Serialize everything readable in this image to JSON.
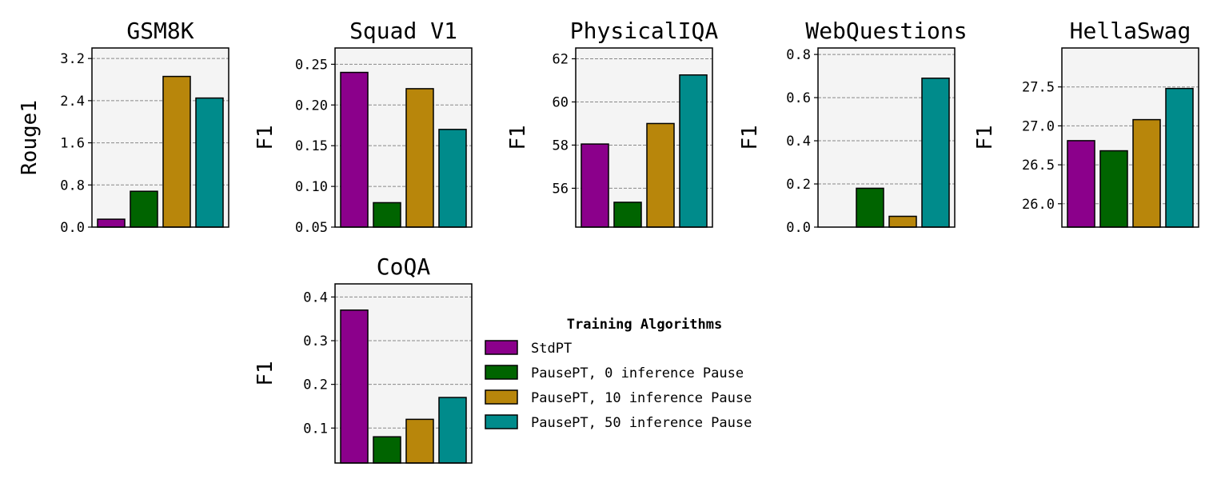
{
  "legend": {
    "title": "Training Algorithms",
    "entries": [
      "StdPT",
      "PausePT, 0 inference Pause",
      "PausePT, 10 inference Pause",
      "PausePT, 50 inference Pause"
    ]
  },
  "colors": [
    "#8b008b",
    "#006400",
    "#b8860b",
    "#008b8b"
  ],
  "chart_data": [
    {
      "type": "bar",
      "title": "GSM8K",
      "ylabel": "Rouge1",
      "categories": [
        "StdPT",
        "PausePT, 0 inference Pause",
        "PausePT, 10 inference Pause",
        "PausePT, 50 inference Pause"
      ],
      "values": [
        0.15,
        0.68,
        2.86,
        2.45
      ],
      "ylim": [
        0,
        3.4
      ],
      "yticks": [
        0,
        0.8,
        1.6,
        2.4,
        3.2
      ],
      "yticklabels": [
        "0.0",
        "0.8",
        "1.6",
        "2.4",
        "3.2"
      ],
      "grid": true
    },
    {
      "type": "bar",
      "title": "Squad V1",
      "ylabel": "F1",
      "categories": [
        "StdPT",
        "PausePT, 0 inference Pause",
        "PausePT, 10 inference Pause",
        "PausePT, 50 inference Pause"
      ],
      "values": [
        0.24,
        0.08,
        0.22,
        0.17
      ],
      "ylim": [
        0.05,
        0.27
      ],
      "yticks": [
        0.05,
        0.1,
        0.15,
        0.2,
        0.25
      ],
      "yticklabels": [
        "0.05",
        "0.10",
        "0.15",
        "0.20",
        "0.25"
      ],
      "grid": true
    },
    {
      "type": "bar",
      "title": "PhysicalIQA",
      "ylabel": "F1",
      "categories": [
        "StdPT",
        "PausePT, 0 inference Pause",
        "PausePT, 10 inference Pause",
        "PausePT, 50 inference Pause"
      ],
      "values": [
        58.05,
        55.35,
        59.0,
        61.25
      ],
      "ylim": [
        54.2,
        62.5
      ],
      "yticks": [
        56,
        58,
        60,
        62
      ],
      "yticklabels": [
        "56",
        "58",
        "60",
        "62"
      ],
      "grid": true
    },
    {
      "type": "bar",
      "title": "WebQuestions",
      "ylabel": "F1",
      "categories": [
        "StdPT",
        "PausePT, 0 inference Pause",
        "PausePT, 10 inference Pause",
        "PausePT, 50 inference Pause"
      ],
      "values": [
        0.0,
        0.18,
        0.05,
        0.69
      ],
      "ylim": [
        0,
        0.83
      ],
      "yticks": [
        0,
        0.2,
        0.4,
        0.6,
        0.8
      ],
      "yticklabels": [
        "0.0",
        "0.2",
        "0.4",
        "0.6",
        "0.8"
      ],
      "grid": true
    },
    {
      "type": "bar",
      "title": "HellaSwag",
      "ylabel": "F1",
      "categories": [
        "StdPT",
        "PausePT, 0 inference Pause",
        "PausePT, 10 inference Pause",
        "PausePT, 50 inference Pause"
      ],
      "values": [
        26.81,
        26.68,
        27.08,
        27.48
      ],
      "ylim": [
        25.7,
        28.0
      ],
      "yticks": [
        26.0,
        26.5,
        27.0,
        27.5
      ],
      "yticklabels": [
        "26.0",
        "26.5",
        "27.0",
        "27.5"
      ],
      "grid": true
    },
    {
      "type": "bar",
      "title": "CoQA",
      "ylabel": "F1",
      "categories": [
        "StdPT",
        "PausePT, 0 inference Pause",
        "PausePT, 10 inference Pause",
        "PausePT, 50 inference Pause"
      ],
      "values": [
        0.37,
        0.08,
        0.12,
        0.17
      ],
      "ylim": [
        0.02,
        0.43
      ],
      "yticks": [
        0.1,
        0.2,
        0.3,
        0.4
      ],
      "yticklabels": [
        "0.1",
        "0.2",
        "0.3",
        "0.4"
      ],
      "grid": true
    }
  ]
}
